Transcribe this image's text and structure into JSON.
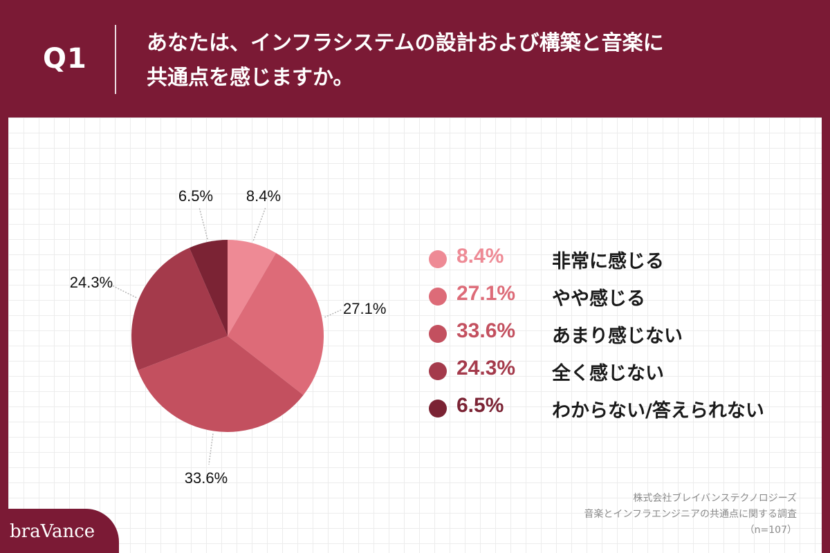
{
  "question": {
    "number": "Q1",
    "text_line1": "あなたは、インフラシステムの設計および構築と音楽に",
    "text_line2": "共通点を感じますか。"
  },
  "chart_data": {
    "type": "pie",
    "title": "",
    "slices": [
      {
        "label": "非常に感じる",
        "value": 8.4,
        "display": "8.4%",
        "color": "#ee8a95"
      },
      {
        "label": "やや感じる",
        "value": 27.1,
        "display": "27.1%",
        "color": "#dd6b78"
      },
      {
        "label": "あまり感じない",
        "value": 33.6,
        "display": "33.6%",
        "color": "#c3505f"
      },
      {
        "label": "全く感じない",
        "value": 24.3,
        "display": "24.3%",
        "color": "#a43a4b"
      },
      {
        "label": "わからない/答えられない",
        "value": 6.5,
        "display": "6.5%",
        "color": "#7b2334"
      }
    ],
    "legend_position": "right"
  },
  "source": {
    "company": "株式会社ブレイバンステクノロジーズ",
    "survey": "音楽とインフラエンジニアの共通点に関する調査",
    "sample": "（n=107）"
  },
  "brand": {
    "logo_text": "braVance",
    "color": "#7b1a35"
  }
}
